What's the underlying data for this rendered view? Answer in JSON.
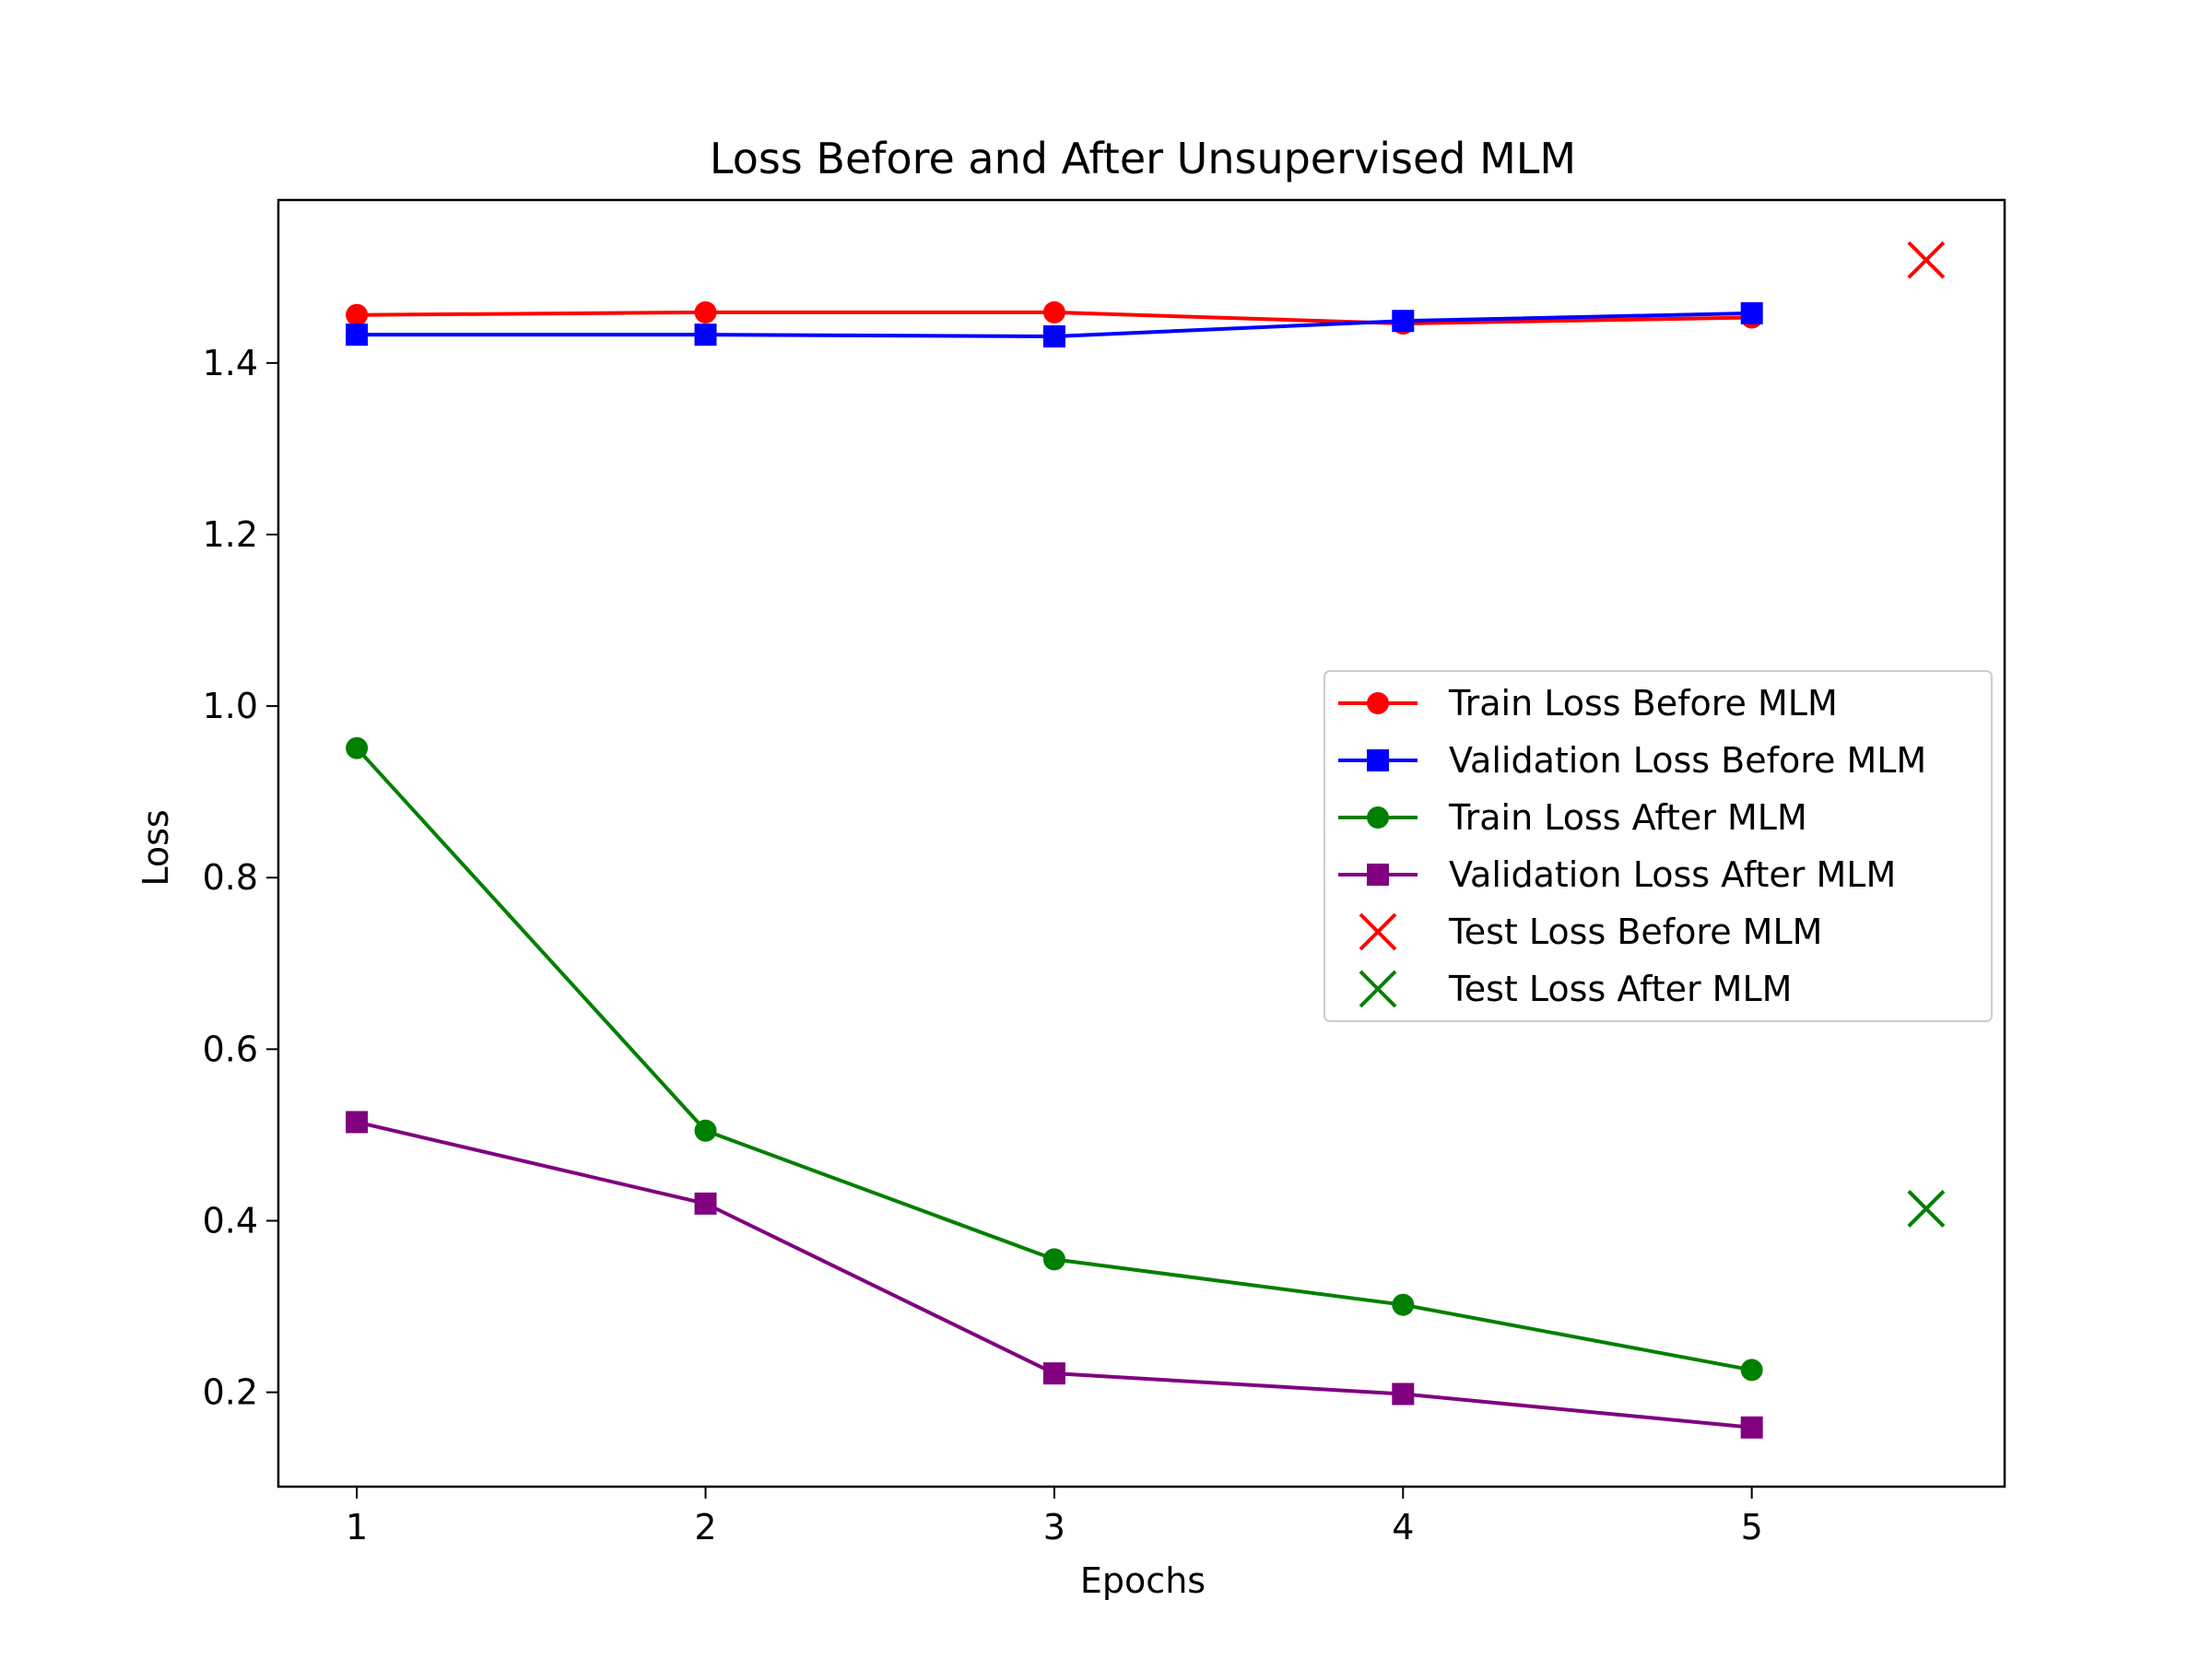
{
  "chart_data": {
    "type": "line",
    "title": "Loss Before and After Unsupervised MLM",
    "xlabel": "Epochs",
    "ylabel": "Loss",
    "xlim": [
      0.775,
      5.725
    ],
    "ylim": [
      0.09,
      1.59
    ],
    "xticks": [
      1,
      2,
      3,
      4,
      5
    ],
    "xtick_labels": [
      "1",
      "2",
      "3",
      "4",
      "5"
    ],
    "yticks": [
      0.2,
      0.4,
      0.6,
      0.8,
      1.0,
      1.2,
      1.4
    ],
    "ytick_labels": [
      "0.2",
      "0.4",
      "0.6",
      "0.8",
      "1.0",
      "1.2",
      "1.4"
    ],
    "grid": false,
    "legend_position": "center-right",
    "series": [
      {
        "name": "Train Loss Before MLM",
        "color": "#ff0000",
        "marker": "circle",
        "line": true,
        "x": [
          1,
          2,
          3,
          4,
          5
        ],
        "y": [
          1.456,
          1.459,
          1.459,
          1.446,
          1.453
        ]
      },
      {
        "name": "Validation Loss Before MLM",
        "color": "#0000ff",
        "marker": "square",
        "line": true,
        "x": [
          1,
          2,
          3,
          4,
          5
        ],
        "y": [
          1.433,
          1.433,
          1.431,
          1.449,
          1.458
        ]
      },
      {
        "name": "Train Loss After MLM",
        "color": "#008000",
        "marker": "circle",
        "line": true,
        "x": [
          1,
          2,
          3,
          4,
          5
        ],
        "y": [
          0.951,
          0.505,
          0.355,
          0.302,
          0.226
        ]
      },
      {
        "name": "Validation Loss After MLM",
        "color": "#800080",
        "marker": "square",
        "line": true,
        "x": [
          1,
          2,
          3,
          4,
          5
        ],
        "y": [
          0.515,
          0.42,
          0.222,
          0.198,
          0.159
        ]
      },
      {
        "name": "Test Loss Before MLM",
        "color": "#ff0000",
        "marker": "x",
        "line": false,
        "x": [
          5.5
        ],
        "y": [
          1.52
        ]
      },
      {
        "name": "Test Loss After MLM",
        "color": "#008000",
        "marker": "x",
        "line": false,
        "x": [
          5.5
        ],
        "y": [
          0.414
        ]
      }
    ]
  }
}
